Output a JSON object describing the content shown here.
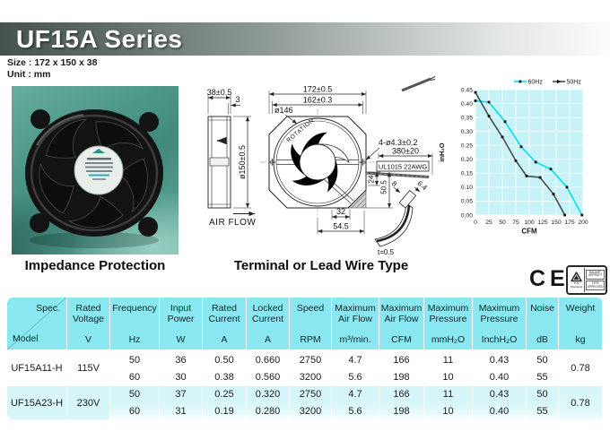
{
  "header": {
    "title": "UF15A Series",
    "size_label": "Size : 172 x 150 x 38",
    "unit_label": "Unit : mm"
  },
  "captions": {
    "photo": "Impedance Protection",
    "drawing": "Terminal or Lead Wire Type"
  },
  "drawing": {
    "side_view": {
      "width_dim": "38±0.5",
      "flange_dim": "3",
      "diameter_dim": "ø150±0.5",
      "airflow_label": "AIR FLOW"
    },
    "front_view": {
      "outer_dim": "172±0.5",
      "bolt_pitch_dim": "162±0.3",
      "circle_dim": "ø146",
      "rotation_label": "ROTATION",
      "holes_dim": "4-ø4.3±0.2",
      "wire_length_dim": "380±20",
      "wire_spec": "UL1015  22AWG",
      "dim_24": "24",
      "dim_50_5": "50.5",
      "dim_32": "32",
      "dim_54_5": "54.5",
      "terminal_dim_a": "8",
      "terminal_dim_b": "6.4",
      "terminal_thickness": "t=0.5"
    }
  },
  "chart_data": {
    "type": "line",
    "xlabel": "CFM",
    "ylabel": "inH₂O",
    "xlim": [
      0,
      200
    ],
    "ylim": [
      0,
      0.45
    ],
    "x_ticks": [
      "0",
      "25",
      "50",
      "75",
      "100",
      "125",
      "150",
      "175",
      "200"
    ],
    "y_ticks": [
      "0.00",
      "0.05",
      "0.10",
      "0.15",
      "0.20",
      "0.25",
      "0.30",
      "0.35",
      "0.40",
      "0.45"
    ],
    "grid": true,
    "plot_bg": "#c7f2f8",
    "grid_color": "#ffffff",
    "legend_position": "top-right",
    "series": [
      {
        "name": "60Hz",
        "color": "#00dff2",
        "x": [
          0,
          25,
          55,
          85,
          112,
          140,
          170,
          198
        ],
        "y": [
          0.41,
          0.405,
          0.335,
          0.245,
          0.19,
          0.165,
          0.1,
          0.0
        ]
      },
      {
        "name": "50Hz",
        "color": "#4a4a4a",
        "x": [
          0,
          25,
          50,
          75,
          95,
          120,
          145,
          166
        ],
        "y": [
          0.44,
          0.355,
          0.28,
          0.195,
          0.14,
          0.135,
          0.075,
          0.0
        ]
      }
    ]
  },
  "certifications": {
    "ce_label": "CE",
    "tuv_brand": "TÜV Rheinland",
    "tuv_line1": "BAUART GEPRÜFT",
    "tuv_line2": "TYPE APPROVED"
  },
  "table": {
    "corner": {
      "top": "Spec.",
      "bottom": "Model"
    },
    "columns": [
      {
        "label": "Rated Voltage",
        "unit": "V"
      },
      {
        "label": "Frequency",
        "unit": "Hz"
      },
      {
        "label": "Input Power",
        "unit": "W"
      },
      {
        "label": "Rated Current",
        "unit": "A"
      },
      {
        "label": "Locked Current",
        "unit": "A"
      },
      {
        "label": "Speed",
        "unit": "RPM"
      },
      {
        "label": "Maximum Air Flow",
        "unit": "m³/min."
      },
      {
        "label": "Maximum Air Flow",
        "unit": "CFM"
      },
      {
        "label": "Maximum Pressure",
        "unit": "mmH₂O"
      },
      {
        "label": "Maximum Pressure",
        "unit": "InchH₂O"
      },
      {
        "label": "Noise",
        "unit": "dB"
      },
      {
        "label": "Weight",
        "unit": "kg"
      }
    ],
    "groups": [
      {
        "model": "UF15A11-H",
        "voltage": "115V",
        "weight": "0.78",
        "rows": [
          {
            "freq": "50",
            "power": "36",
            "rated": "0.50",
            "locked": "0.660",
            "speed": "2750",
            "m3": "4.7",
            "cfm": "166",
            "mm": "11",
            "inch": "0.43",
            "db": "50"
          },
          {
            "freq": "60",
            "power": "30",
            "rated": "0.38",
            "locked": "0.560",
            "speed": "3200",
            "m3": "5.6",
            "cfm": "198",
            "mm": "10",
            "inch": "0.40",
            "db": "55"
          }
        ]
      },
      {
        "model": "UF15A23-H",
        "voltage": "230V",
        "weight": "0.78",
        "rows": [
          {
            "freq": "50",
            "power": "37",
            "rated": "0.25",
            "locked": "0.320",
            "speed": "2750",
            "m3": "4.7",
            "cfm": "166",
            "mm": "11",
            "inch": "0.43",
            "db": "50"
          },
          {
            "freq": "60",
            "power": "31",
            "rated": "0.19",
            "locked": "0.280",
            "speed": "3200",
            "m3": "5.6",
            "cfm": "198",
            "mm": "10",
            "inch": "0.40",
            "db": "55"
          }
        ]
      }
    ]
  }
}
